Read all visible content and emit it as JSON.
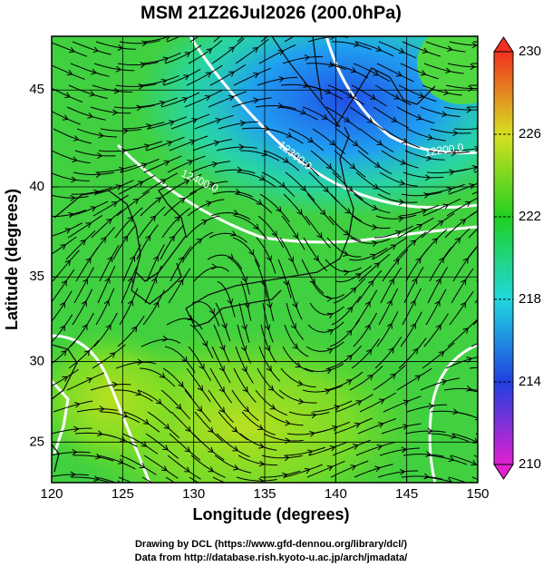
{
  "chart_data": {
    "type": "map",
    "title": "MSM 21Z26Jul2026 (200.0hPa)",
    "xlabel": "Longitude (degrees)",
    "ylabel": "Latitude  (degrees)",
    "projection": "mercator",
    "xlim": [
      120,
      150
    ],
    "ylim": [
      22.4,
      47.6
    ],
    "xticks": [
      120,
      125,
      130,
      135,
      140,
      145,
      150
    ],
    "yticks": [
      25,
      30,
      35,
      40,
      45
    ],
    "grid": true,
    "colorbar": {
      "clim": [
        210,
        230
      ],
      "ticks": [
        210,
        214,
        218,
        222,
        226,
        230
      ],
      "colors": [
        "#e020d0",
        "#2040e0",
        "#20d8e0",
        "#20d020",
        "#d8e020",
        "#f03020"
      ]
    },
    "contour_labels": [
      "12200.0",
      "12300.0",
      "12400.0"
    ],
    "credits": [
      "Drawing by DCL (https://www.gfd-dennou.org/library/dcl/)",
      "Data from http://database.rish.kyoto-u.ac.jp/arch/jmadata/"
    ]
  }
}
